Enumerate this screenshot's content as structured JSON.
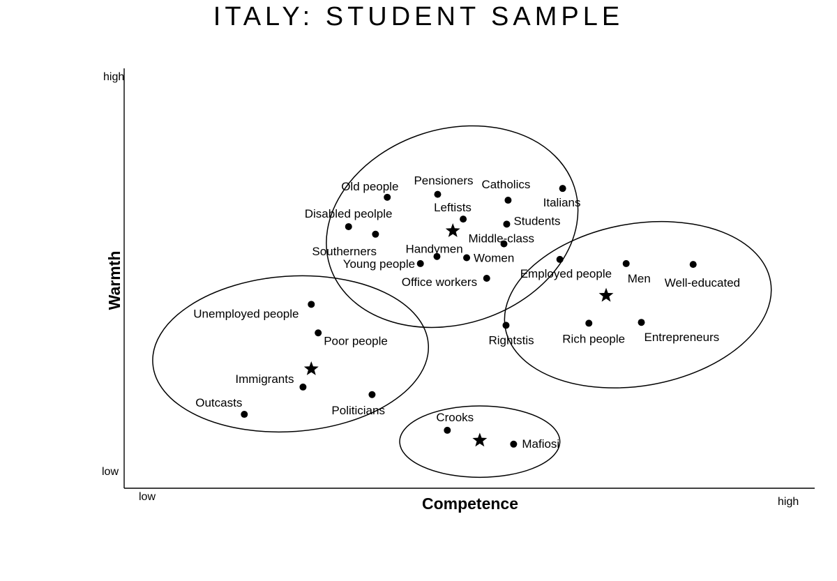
{
  "chart_data": {
    "type": "scatter",
    "title": "ITALY: STUDENT SAMPLE",
    "xlabel": "Competence",
    "ylabel": "Warmth",
    "xlim": [
      0,
      100
    ],
    "ylim": [
      0,
      100
    ],
    "x_ticks": {
      "low": "low",
      "high": "high"
    },
    "y_ticks": {
      "low": "low",
      "high": "high"
    },
    "points": [
      {
        "label": "Old people",
        "x": 38.1,
        "y": 69.3
      },
      {
        "label": "Pensioners",
        "x": 45.4,
        "y": 70.0
      },
      {
        "label": "Catholics",
        "x": 55.6,
        "y": 68.6
      },
      {
        "label": "Italians",
        "x": 63.5,
        "y": 71.4
      },
      {
        "label": "Disabled peolple",
        "x": 32.5,
        "y": 62.3
      },
      {
        "label": "Leftists",
        "x": 49.1,
        "y": 64.1
      },
      {
        "label": "Students",
        "x": 55.4,
        "y": 62.9
      },
      {
        "label": "Southerners",
        "x": 36.4,
        "y": 60.5
      },
      {
        "label": "Middle-class",
        "x": 55.0,
        "y": 58.2
      },
      {
        "label": "Handymen",
        "x": 45.3,
        "y": 55.2
      },
      {
        "label": "Women",
        "x": 49.6,
        "y": 54.9
      },
      {
        "label": "Young people",
        "x": 42.9,
        "y": 53.5
      },
      {
        "label": "Office workers",
        "x": 52.5,
        "y": 50.0
      },
      {
        "label": "Employed people",
        "x": 63.1,
        "y": 54.5
      },
      {
        "label": "Men",
        "x": 72.7,
        "y": 53.5
      },
      {
        "label": "Well-educated",
        "x": 82.4,
        "y": 53.3
      },
      {
        "label": "Rightstis",
        "x": 55.3,
        "y": 38.8
      },
      {
        "label": "Rich people",
        "x": 67.3,
        "y": 39.3
      },
      {
        "label": "Entrepreneurs",
        "x": 74.9,
        "y": 39.5
      },
      {
        "label": "Unemployed people",
        "x": 27.1,
        "y": 43.8
      },
      {
        "label": "Poor people",
        "x": 28.1,
        "y": 37.0
      },
      {
        "label": "Immigrants",
        "x": 25.9,
        "y": 24.1
      },
      {
        "label": "Politicians",
        "x": 35.9,
        "y": 22.3
      },
      {
        "label": "Outcasts",
        "x": 17.4,
        "y": 17.6
      },
      {
        "label": "Crooks",
        "x": 46.8,
        "y": 13.8
      },
      {
        "label": "Mafiosi",
        "x": 56.4,
        "y": 10.5
      }
    ],
    "cluster_centroids": [
      {
        "x": 47.6,
        "y": 61.3
      },
      {
        "x": 69.8,
        "y": 45.9
      },
      {
        "x": 27.1,
        "y": 28.4
      },
      {
        "x": 51.5,
        "y": 11.4
      }
    ],
    "clusters": [
      {
        "cx": 47.5,
        "cy": 62.3,
        "rx": 18.6,
        "ry": 23.2,
        "rotate": -18
      },
      {
        "cx": 74.4,
        "cy": 43.7,
        "rx": 19.5,
        "ry": 19.3,
        "rotate": -10
      },
      {
        "cx": 24.1,
        "cy": 32.0,
        "rx": 20.0,
        "ry": 18.5,
        "rotate": -4
      },
      {
        "cx": 51.5,
        "cy": 11.1,
        "rx": 11.6,
        "ry": 8.5,
        "rotate": 0
      }
    ]
  }
}
